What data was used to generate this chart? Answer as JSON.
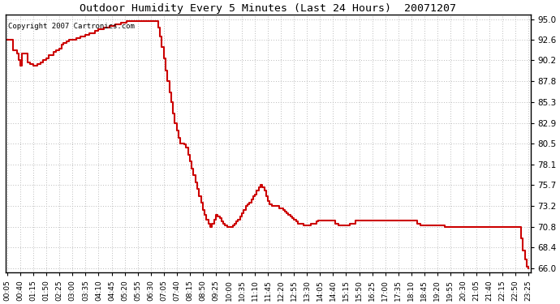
{
  "title": "Outdoor Humidity Every 5 Minutes (Last 24 Hours)  20071207",
  "copyright": "Copyright 2007 Cartronics.com",
  "line_color": "#cc0000",
  "bg_color": "#ffffff",
  "plot_bg_color": "#ffffff",
  "grid_color": "#bbbbbb",
  "ylim": [
    65.5,
    95.5
  ],
  "yticks": [
    95.0,
    92.6,
    90.2,
    87.8,
    85.3,
    82.9,
    80.5,
    78.1,
    75.7,
    73.2,
    70.8,
    68.4,
    66.0
  ],
  "x_labels": [
    "00:05",
    "00:40",
    "01:15",
    "01:50",
    "02:25",
    "03:00",
    "03:35",
    "04:10",
    "04:45",
    "05:20",
    "05:55",
    "06:30",
    "07:05",
    "07:40",
    "08:15",
    "08:50",
    "09:25",
    "10:00",
    "10:35",
    "11:10",
    "11:45",
    "12:20",
    "12:55",
    "13:30",
    "14:05",
    "14:40",
    "15:15",
    "15:50",
    "16:25",
    "17:00",
    "17:35",
    "18:10",
    "18:45",
    "19:20",
    "19:55",
    "20:30",
    "21:05",
    "21:40",
    "22:15",
    "22:50",
    "23:25"
  ],
  "key_points": [
    [
      0,
      92.6
    ],
    [
      1,
      92.6
    ],
    [
      2,
      92.6
    ],
    [
      3,
      91.4
    ],
    [
      4,
      91.4
    ],
    [
      5,
      91.0
    ],
    [
      6,
      90.2
    ],
    [
      7,
      89.6
    ],
    [
      8,
      91.0
    ],
    [
      9,
      91.0
    ],
    [
      10,
      91.0
    ],
    [
      11,
      90.0
    ],
    [
      12,
      89.8
    ],
    [
      13,
      89.8
    ],
    [
      14,
      89.6
    ],
    [
      15,
      89.6
    ],
    [
      16,
      89.8
    ],
    [
      17,
      89.8
    ],
    [
      18,
      90.0
    ],
    [
      19,
      90.2
    ],
    [
      20,
      90.2
    ],
    [
      21,
      90.4
    ],
    [
      22,
      90.8
    ],
    [
      23,
      90.8
    ],
    [
      24,
      90.8
    ],
    [
      25,
      91.2
    ],
    [
      26,
      91.4
    ],
    [
      27,
      91.4
    ],
    [
      28,
      91.6
    ],
    [
      29,
      92.0
    ],
    [
      30,
      92.2
    ],
    [
      31,
      92.2
    ],
    [
      32,
      92.4
    ],
    [
      33,
      92.6
    ],
    [
      34,
      92.6
    ],
    [
      35,
      92.6
    ],
    [
      36,
      92.6
    ],
    [
      37,
      92.8
    ],
    [
      38,
      92.8
    ],
    [
      39,
      93.0
    ],
    [
      40,
      93.0
    ],
    [
      41,
      93.0
    ],
    [
      42,
      93.2
    ],
    [
      43,
      93.2
    ],
    [
      44,
      93.4
    ],
    [
      45,
      93.4
    ],
    [
      46,
      93.4
    ],
    [
      47,
      93.6
    ],
    [
      48,
      93.6
    ],
    [
      49,
      93.8
    ],
    [
      50,
      93.8
    ],
    [
      51,
      93.8
    ],
    [
      52,
      94.0
    ],
    [
      53,
      94.0
    ],
    [
      54,
      94.0
    ],
    [
      55,
      94.2
    ],
    [
      56,
      94.2
    ],
    [
      57,
      94.2
    ],
    [
      58,
      94.4
    ],
    [
      59,
      94.4
    ],
    [
      60,
      94.4
    ],
    [
      61,
      94.6
    ],
    [
      62,
      94.6
    ],
    [
      63,
      94.6
    ],
    [
      64,
      94.8
    ],
    [
      65,
      94.8
    ],
    [
      66,
      94.8
    ],
    [
      67,
      94.8
    ],
    [
      68,
      94.8
    ],
    [
      69,
      94.8
    ],
    [
      70,
      94.8
    ],
    [
      71,
      94.8
    ],
    [
      72,
      94.8
    ],
    [
      73,
      94.8
    ],
    [
      74,
      94.8
    ],
    [
      75,
      94.8
    ],
    [
      76,
      94.8
    ],
    [
      77,
      94.8
    ],
    [
      78,
      94.8
    ],
    [
      79,
      94.8
    ],
    [
      80,
      94.8
    ],
    [
      81,
      94.0
    ],
    [
      82,
      93.0
    ],
    [
      83,
      91.8
    ],
    [
      84,
      90.4
    ],
    [
      85,
      89.0
    ],
    [
      86,
      87.8
    ],
    [
      87,
      86.5
    ],
    [
      88,
      85.3
    ],
    [
      89,
      84.0
    ],
    [
      90,
      82.9
    ],
    [
      91,
      82.0
    ],
    [
      92,
      81.2
    ],
    [
      93,
      80.5
    ],
    [
      94,
      80.5
    ],
    [
      95,
      80.4
    ],
    [
      96,
      80.0
    ],
    [
      97,
      79.2
    ],
    [
      98,
      78.4
    ],
    [
      99,
      77.6
    ],
    [
      100,
      76.8
    ],
    [
      101,
      76.0
    ],
    [
      102,
      75.2
    ],
    [
      103,
      74.4
    ],
    [
      104,
      73.6
    ],
    [
      105,
      72.8
    ],
    [
      106,
      72.2
    ],
    [
      107,
      71.6
    ],
    [
      108,
      71.2
    ],
    [
      109,
      70.8
    ],
    [
      110,
      71.2
    ],
    [
      111,
      71.6
    ],
    [
      112,
      72.2
    ],
    [
      113,
      72.0
    ],
    [
      114,
      71.8
    ],
    [
      115,
      71.4
    ],
    [
      116,
      71.2
    ],
    [
      117,
      71.0
    ],
    [
      118,
      70.8
    ],
    [
      119,
      70.8
    ],
    [
      120,
      70.8
    ],
    [
      121,
      71.0
    ],
    [
      122,
      71.2
    ],
    [
      123,
      71.4
    ],
    [
      124,
      71.6
    ],
    [
      125,
      72.0
    ],
    [
      126,
      72.4
    ],
    [
      127,
      72.8
    ],
    [
      128,
      73.2
    ],
    [
      129,
      73.4
    ],
    [
      130,
      73.6
    ],
    [
      131,
      74.0
    ],
    [
      132,
      74.4
    ],
    [
      133,
      74.6
    ],
    [
      134,
      75.0
    ],
    [
      135,
      75.4
    ],
    [
      136,
      75.7
    ],
    [
      137,
      75.4
    ],
    [
      138,
      75.0
    ],
    [
      139,
      74.4
    ],
    [
      140,
      73.8
    ],
    [
      141,
      73.4
    ],
    [
      142,
      73.2
    ],
    [
      143,
      73.2
    ],
    [
      144,
      73.2
    ],
    [
      145,
      73.2
    ],
    [
      146,
      73.0
    ],
    [
      147,
      73.0
    ],
    [
      148,
      72.8
    ],
    [
      149,
      72.6
    ],
    [
      150,
      72.4
    ],
    [
      151,
      72.2
    ],
    [
      152,
      72.0
    ],
    [
      153,
      71.8
    ],
    [
      154,
      71.6
    ],
    [
      155,
      71.4
    ],
    [
      156,
      71.2
    ],
    [
      157,
      71.2
    ],
    [
      158,
      71.2
    ],
    [
      159,
      71.0
    ],
    [
      160,
      71.0
    ],
    [
      161,
      71.0
    ],
    [
      162,
      71.0
    ],
    [
      163,
      71.2
    ],
    [
      164,
      71.2
    ],
    [
      165,
      71.2
    ],
    [
      166,
      71.4
    ],
    [
      167,
      71.5
    ],
    [
      168,
      71.5
    ],
    [
      169,
      71.5
    ],
    [
      170,
      71.5
    ],
    [
      171,
      71.5
    ],
    [
      172,
      71.5
    ],
    [
      173,
      71.5
    ],
    [
      174,
      71.5
    ],
    [
      175,
      71.5
    ],
    [
      176,
      71.2
    ],
    [
      177,
      71.2
    ],
    [
      178,
      71.0
    ],
    [
      179,
      71.0
    ],
    [
      180,
      71.0
    ],
    [
      181,
      71.0
    ],
    [
      182,
      71.0
    ],
    [
      183,
      71.0
    ],
    [
      184,
      71.2
    ],
    [
      185,
      71.2
    ],
    [
      186,
      71.2
    ],
    [
      187,
      71.5
    ],
    [
      188,
      71.5
    ],
    [
      189,
      71.5
    ],
    [
      190,
      71.5
    ],
    [
      191,
      71.5
    ],
    [
      192,
      71.5
    ],
    [
      193,
      71.5
    ],
    [
      194,
      71.5
    ],
    [
      195,
      71.5
    ],
    [
      196,
      71.5
    ],
    [
      197,
      71.5
    ],
    [
      198,
      71.5
    ],
    [
      199,
      71.5
    ],
    [
      200,
      71.5
    ],
    [
      201,
      71.5
    ],
    [
      202,
      71.5
    ],
    [
      203,
      71.5
    ],
    [
      204,
      71.5
    ],
    [
      205,
      71.5
    ],
    [
      206,
      71.5
    ],
    [
      207,
      71.5
    ],
    [
      208,
      71.5
    ],
    [
      209,
      71.5
    ],
    [
      210,
      71.5
    ],
    [
      211,
      71.5
    ],
    [
      212,
      71.5
    ],
    [
      213,
      71.5
    ],
    [
      214,
      71.5
    ],
    [
      215,
      71.5
    ],
    [
      216,
      71.5
    ],
    [
      217,
      71.5
    ],
    [
      218,
      71.5
    ],
    [
      219,
      71.5
    ],
    [
      220,
      71.2
    ],
    [
      221,
      71.2
    ],
    [
      222,
      71.0
    ],
    [
      223,
      71.0
    ],
    [
      224,
      71.0
    ],
    [
      225,
      71.0
    ],
    [
      226,
      71.0
    ],
    [
      227,
      71.0
    ],
    [
      228,
      71.0
    ],
    [
      229,
      71.0
    ],
    [
      230,
      71.0
    ],
    [
      231,
      71.0
    ],
    [
      232,
      71.0
    ],
    [
      233,
      71.0
    ],
    [
      234,
      71.0
    ],
    [
      235,
      70.8
    ],
    [
      236,
      70.8
    ],
    [
      237,
      70.8
    ],
    [
      238,
      70.8
    ],
    [
      239,
      70.8
    ],
    [
      240,
      70.8
    ],
    [
      241,
      70.8
    ],
    [
      242,
      70.8
    ],
    [
      243,
      70.8
    ],
    [
      244,
      70.8
    ],
    [
      245,
      70.8
    ],
    [
      246,
      70.8
    ],
    [
      247,
      70.8
    ],
    [
      248,
      70.8
    ],
    [
      249,
      70.8
    ],
    [
      250,
      70.8
    ],
    [
      251,
      70.8
    ],
    [
      252,
      70.8
    ],
    [
      253,
      70.8
    ],
    [
      254,
      70.8
    ],
    [
      255,
      70.8
    ],
    [
      256,
      70.8
    ],
    [
      257,
      70.8
    ],
    [
      258,
      70.8
    ],
    [
      259,
      70.8
    ],
    [
      260,
      70.8
    ],
    [
      261,
      70.8
    ],
    [
      262,
      70.8
    ],
    [
      263,
      70.8
    ],
    [
      264,
      70.8
    ],
    [
      265,
      70.8
    ],
    [
      266,
      70.8
    ],
    [
      267,
      70.8
    ],
    [
      268,
      70.8
    ],
    [
      269,
      70.8
    ],
    [
      270,
      70.8
    ],
    [
      271,
      70.8
    ],
    [
      272,
      70.8
    ],
    [
      273,
      70.8
    ],
    [
      274,
      70.8
    ],
    [
      275,
      70.8
    ],
    [
      276,
      69.5
    ],
    [
      277,
      68.0
    ],
    [
      278,
      67.0
    ],
    [
      279,
      66.2
    ],
    [
      280,
      66.0
    ]
  ]
}
